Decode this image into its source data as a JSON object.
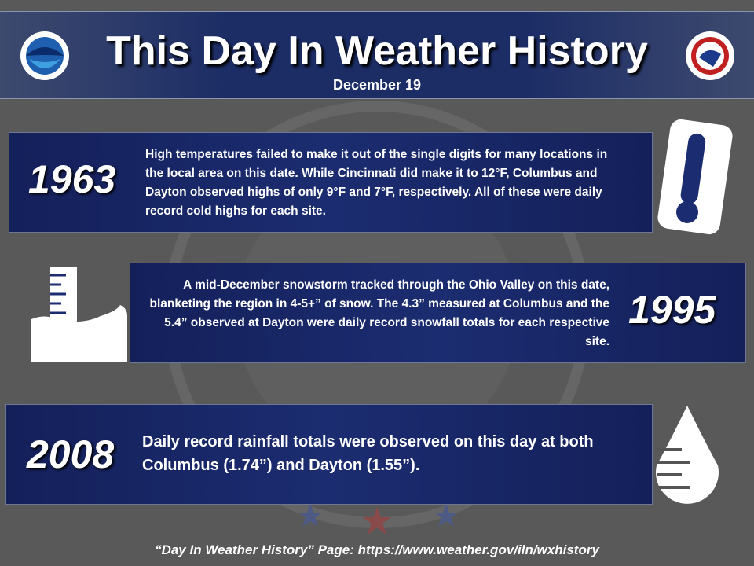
{
  "header": {
    "title": "This Day In Weather History",
    "date": "December 19"
  },
  "entries": [
    {
      "year": "1963",
      "text": "High temperatures failed to make it out of the single digits for many locations in the local area on this date. While Cincinnati did make it to 12°F, Columbus and Dayton observed highs of only 9°F and 7°F, respectively. All of these were daily record cold highs for each site."
    },
    {
      "year": "1995",
      "text": "A mid-December snowstorm tracked through the Ohio Valley on this date, blanketing the region in 4-5+” of snow. The 4.3” measured at Columbus and the 5.4” observed at Dayton were daily record snowfall totals for each respective site."
    },
    {
      "year": "2008",
      "text": "Daily record rainfall totals were observed on this day at both Columbus (1.74”) and Dayton (1.55”)."
    }
  ],
  "footer": "“Day In Weather History” Page: https://www.weather.gov/iln/wxhistory"
}
